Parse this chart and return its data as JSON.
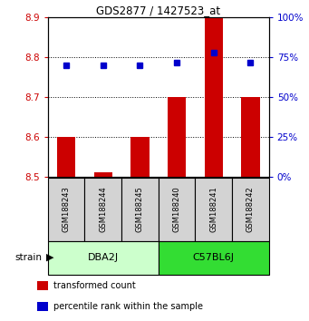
{
  "title": "GDS2877 / 1427523_at",
  "samples": [
    "GSM188243",
    "GSM188244",
    "GSM188245",
    "GSM188240",
    "GSM188241",
    "GSM188242"
  ],
  "bar_values": [
    8.6,
    8.51,
    8.6,
    8.7,
    8.9,
    8.7
  ],
  "bar_base": 8.5,
  "percentile_values": [
    70,
    70,
    70,
    72,
    78,
    72
  ],
  "ylim_left": [
    8.5,
    8.9
  ],
  "ylim_right": [
    0,
    100
  ],
  "yticks_left": [
    8.5,
    8.6,
    8.7,
    8.8,
    8.9
  ],
  "yticks_right": [
    0,
    25,
    50,
    75,
    100
  ],
  "bar_color": "#CC0000",
  "dot_color": "#0000CC",
  "bar_width": 0.5,
  "left_tick_color": "#CC0000",
  "right_tick_color": "#0000CC",
  "legend_items": [
    {
      "color": "#CC0000",
      "label": "transformed count"
    },
    {
      "color": "#0000CC",
      "label": "percentile rank within the sample"
    }
  ],
  "strain_label": "strain",
  "sample_box_color": "#D3D3D3",
  "group_box_light": "#CCFFCC",
  "group_box_dark": "#33DD33",
  "group_labels": [
    "DBA2J",
    "C57BL6J"
  ],
  "group_starts": [
    0,
    3
  ],
  "group_ends": [
    3,
    6
  ]
}
